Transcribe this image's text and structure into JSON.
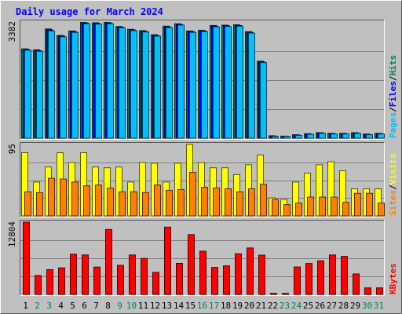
{
  "chart_data": {
    "type": "bar",
    "title": "Daily usage for March 2024",
    "colors": {
      "background": "#c0c0c0",
      "panel": "#c0c0c0",
      "hits": "#00805c",
      "files": "#0000ff",
      "pages": "#00c0ff",
      "visits": "#ffff00",
      "sites": "#ff8000",
      "kbytes": "#ff0000",
      "title": "#0000ff",
      "weekend_day": "#00805c",
      "weekday": "#000000"
    },
    "days": [
      "1",
      "2",
      "3",
      "4",
      "5",
      "6",
      "7",
      "8",
      "9",
      "10",
      "11",
      "12",
      "13",
      "14",
      "15",
      "16",
      "17",
      "18",
      "19",
      "20",
      "21",
      "22",
      "23",
      "24",
      "25",
      "26",
      "27",
      "28",
      "29",
      "30",
      "31"
    ],
    "weekend_days": [
      "2",
      "3",
      "9",
      "10",
      "16",
      "17",
      "23",
      "24",
      "30",
      "31"
    ],
    "panels": [
      {
        "id": "traffic",
        "scale_label": "3382",
        "ylim": [
          0,
          3382
        ],
        "legend": [
          {
            "text": "Pages",
            "color": "#00c0ff"
          },
          {
            "text": "/",
            "color": "#000000"
          },
          {
            "text": "Files",
            "color": "#0000ff"
          },
          {
            "text": "/",
            "color": "#000000"
          },
          {
            "text": "Hits",
            "color": "#00805c"
          }
        ],
        "series": [
          {
            "name": "Hits",
            "color": "#00805c",
            "values": [
              2600,
              2570,
              3180,
              2990,
              3120,
              3370,
              3360,
              3370,
              3250,
              3170,
              3130,
              3010,
              3260,
              3330,
              3120,
              3140,
              3280,
              3290,
              3300,
              3100,
              2240,
              70,
              60,
              100,
              130,
              160,
              140,
              140,
              160,
              120,
              140
            ]
          },
          {
            "name": "Files",
            "color": "#0000ff",
            "values": [
              2580,
              2550,
              3150,
              2970,
              3100,
              3350,
              3340,
              3350,
              3230,
              3150,
              3110,
              2990,
              3240,
              3310,
              3100,
              3120,
              3260,
              3270,
              3280,
              3080,
              2220,
              60,
              55,
              90,
              120,
              150,
              130,
              130,
              150,
              110,
              130
            ]
          },
          {
            "name": "Pages",
            "color": "#00c0ff",
            "values": [
              2560,
              2530,
              3120,
              2950,
              3080,
              3330,
              3320,
              3330,
              3210,
              3130,
              3090,
              2970,
              3220,
              3290,
              3080,
              3100,
              3240,
              3250,
              3260,
              3060,
              2200,
              50,
              50,
              80,
              110,
              140,
              120,
              120,
              140,
              100,
              120
            ]
          }
        ]
      },
      {
        "id": "visitors",
        "scale_label": "95",
        "ylim": [
          0,
          95
        ],
        "legend": [
          {
            "text": "Sites",
            "color": "#ff8000"
          },
          {
            "text": "/",
            "color": "#000000"
          },
          {
            "text": "Visits",
            "color": "#ffff00"
          }
        ],
        "series": [
          {
            "name": "Visits",
            "color": "#ffff00",
            "values": [
              84,
              45,
              65,
              84,
              71,
              84,
              65,
              64,
              65,
              45,
              71,
              70,
              45,
              70,
              95,
              71,
              64,
              64,
              55,
              68,
              81,
              24,
              22,
              45,
              57,
              68,
              72,
              60,
              36,
              36,
              36
            ]
          },
          {
            "name": "Sites",
            "color": "#ff8000",
            "values": [
              32,
              31,
              50,
              49,
              45,
              40,
              41,
              37,
              32,
              32,
              31,
              41,
              34,
              35,
              58,
              38,
              37,
              36,
              32,
              36,
              42,
              22,
              15,
              17,
              25,
              25,
              25,
              18,
              30,
              30,
              17
            ]
          }
        ]
      },
      {
        "id": "kbytes",
        "scale_label": "12804",
        "ylim": [
          0,
          12804
        ],
        "legend": [
          {
            "text": "KBytes",
            "color": "#ff0000"
          }
        ],
        "series": [
          {
            "name": "KBytes",
            "color": "#ff0000",
            "values": [
              12804,
              3350,
              4380,
              4700,
              7120,
              6990,
              4840,
              11500,
              5150,
              6990,
              6370,
              3900,
              11930,
              5500,
              10600,
              7650,
              4780,
              5050,
              7200,
              8230,
              6950,
              180,
              180,
              4860,
              5480,
              5950,
              6990,
              6730,
              3620,
              1150,
              1150
            ]
          }
        ]
      }
    ]
  }
}
